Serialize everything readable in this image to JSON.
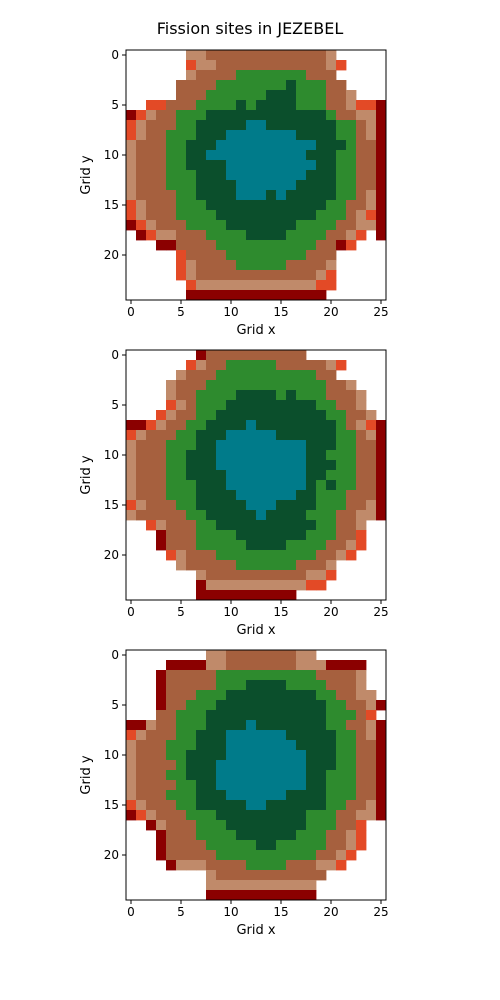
{
  "figure": {
    "title": "Fission sites in JEZEBEL"
  },
  "colors": {
    "0": "#ffffff",
    "1": "#8b0000",
    "2": "#e34a26",
    "3": "#c08a6a",
    "4": "#a6603e",
    "5": "#2e8b2e",
    "6": "#0b4f2c",
    "7": "#007b8a"
  },
  "chart_data": [
    {
      "type": "heatmap",
      "xlabel": "Grid x",
      "ylabel": "Grid y",
      "xticks": [
        0,
        5,
        10,
        15,
        20,
        25
      ],
      "yticks": [
        0,
        5,
        10,
        15,
        20
      ],
      "xlim": [
        -0.5,
        25.5
      ],
      "ylim": [
        24.5,
        -0.5
      ],
      "grid": false,
      "rows": [
        "00000033444444444444300000",
        "00000023344444444444320000",
        "00000034444555555544400000",
        "00000444455555556555440000",
        "00000444555555666555443000",
        "00224445555656666555443221",
        "12344555666666666666544331",
        "23444556666677666666655431",
        "23445556667777777666655431",
        "34445566677777777776665441",
        "34445566777777777766655441",
        "34445566667777777776655441",
        "34445556667777777766655441",
        "34445556666777777666655441",
        "34444556666777676666655431",
        "23444555666666666666554431",
        "23444555566666666665554321",
        "12344455556666666555544331",
        "01233444555566665555443201",
        "00011444455555555554412000",
        "00000244445555555544400000",
        "00000234444555554444300000",
        "00000234444444444443200000",
        "00000023333333333332200000",
        "00000011111111111111000000"
      ]
    },
    {
      "type": "heatmap",
      "xlabel": "Grid x",
      "ylabel": "Grid y",
      "xticks": [
        0,
        5,
        10,
        15,
        20,
        25
      ],
      "yticks": [
        0,
        5,
        10,
        15,
        20
      ],
      "xlim": [
        -0.5,
        25.5
      ],
      "ylim": [
        24.5,
        -0.5
      ],
      "grid": false,
      "rows": [
        "00000001444444444400000000",
        "00000023445555544444320000",
        "00000344455555555554400000",
        "00003444555555555555443000",
        "00003445555666656555444300",
        "00002345556666666665544300",
        "00023445566666666666554430",
        "11234455666676666666654321",
        "23444556667777766666655431",
        "34445556677777777766655441",
        "34445566677777777766555441",
        "34445566677777777766655441",
        "34445566667777777766555441",
        "34445556667777777765655441",
        "34445556666777777665554441",
        "23444556666677766665554431",
        "34444455666667666655544331",
        "00234445566666666665544300",
        "00014445555666666655544200",
        "00014445555566665555443200",
        "00002344455555555554432000",
        "00000344444555555444300000",
        "00000003444444444433200000",
        "00000001333333333322000000",
        "00000001111111111000000000"
      ]
    },
    {
      "type": "heatmap",
      "xlabel": "Grid x",
      "ylabel": "Grid y",
      "xticks": [
        0,
        5,
        10,
        15,
        20,
        25
      ],
      "yticks": [
        0,
        5,
        10,
        15,
        20
      ],
      "xlim": [
        -0.5,
        25.5
      ],
      "ylim": [
        24.5,
        -0.5
      ],
      "grid": false,
      "rows": [
        "00000000334444444330000000",
        "00001111334444444333111100",
        "00014444455555555554444300",
        "00014444455566665555444300",
        "00014445556666666665544330",
        "00014455566666666666554431",
        "00044555666666666666555420",
        "11344555666676666666554431",
        "23444556667777776666655431",
        "34445556667777777666655441",
        "34445566667777777766655441",
        "34444566677777777766655441",
        "34445566677777777766555441",
        "34444556677777777766555441",
        "34445556667777776666555441",
        "23444556666677666666554431",
        "12344455566666666655544331",
        "00134445556666666655544200",
        "00014445555666666555443200",
        "00014444555556655555443200",
        "00014444455555555554432000",
        "00001333444455554443320000",
        "00000000344444444444000000",
        "00000000333333333330000000",
        "00000000111111111110000000"
      ]
    }
  ]
}
